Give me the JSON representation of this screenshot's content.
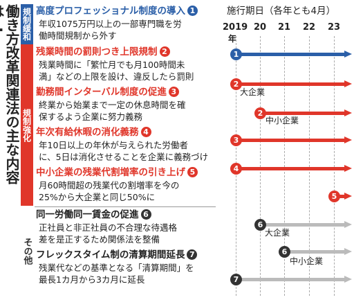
{
  "title": "働き方改革関連法の主な内容は…",
  "categories": {
    "deregulation": "規制緩和",
    "strengthening": "規制強化",
    "other": "その他"
  },
  "items": [
    {
      "num": "1",
      "heading": "高度プロフェッショナル制度の導入",
      "text": [
        "年収1075万円以上の一部専門職を労",
        "働時間規制から外す"
      ]
    },
    {
      "num": "2",
      "heading": "残業時間の罰則つき上限規制",
      "text": [
        "残業時間に「繁忙月でも月100時間未",
        "満」などの上限を設け、違反したら罰則"
      ]
    },
    {
      "num": "3",
      "heading": "勤務間インターバル制度の促進",
      "text": [
        "終業から始業まで一定の休息時間を確",
        "保するよう企業に努力義務"
      ]
    },
    {
      "num": "4",
      "heading": "年次有給休暇の消化義務",
      "text": [
        "年10日以上の年休が与えられた労働者",
        "に、5日は消化させることを企業に義務づけ"
      ]
    },
    {
      "num": "5",
      "heading": "中小企業の残業代割増率の引き上げ",
      "text": [
        "月60時間超の残業代の割増率を今の",
        "25%から大企業と同じ50%に"
      ]
    },
    {
      "num": "6",
      "heading": "同一労働同一賃金の促進",
      "text": [
        "正社員と非正社員の不合理な待遇格",
        "差を是正するため関係法を整備"
      ]
    },
    {
      "num": "7",
      "heading": "フレックスタイム制の清算期間延長",
      "text": [
        "残業代などの基準となる「清算期間」を",
        "最長1カ月から3カ月に延長"
      ]
    }
  ],
  "timeline": {
    "title": "施行期日（各年とも4月）",
    "years": [
      "2019",
      "20",
      "21",
      "22",
      "23"
    ],
    "year_suffix": "年",
    "rows": [
      {
        "num": "1",
        "start": "2019",
        "label": ""
      },
      {
        "num": "2",
        "start": "2019",
        "label": "大企業"
      },
      {
        "num": "2",
        "start": "20",
        "label": "中小企業"
      },
      {
        "num": "3",
        "start": "2019",
        "label": ""
      },
      {
        "num": "4",
        "start": "2019",
        "label": ""
      },
      {
        "num": "5",
        "start": "23",
        "label": ""
      },
      {
        "num": "6",
        "start": "20",
        "label": "大企業"
      },
      {
        "num": "6",
        "start": "21",
        "label": "中小企業"
      },
      {
        "num": "7",
        "start": "2019",
        "label": ""
      }
    ]
  },
  "colors": {
    "blue": "#2b5fa8",
    "red": "#e0362a",
    "gray": "#bbbbbb",
    "dark": "#333333"
  }
}
